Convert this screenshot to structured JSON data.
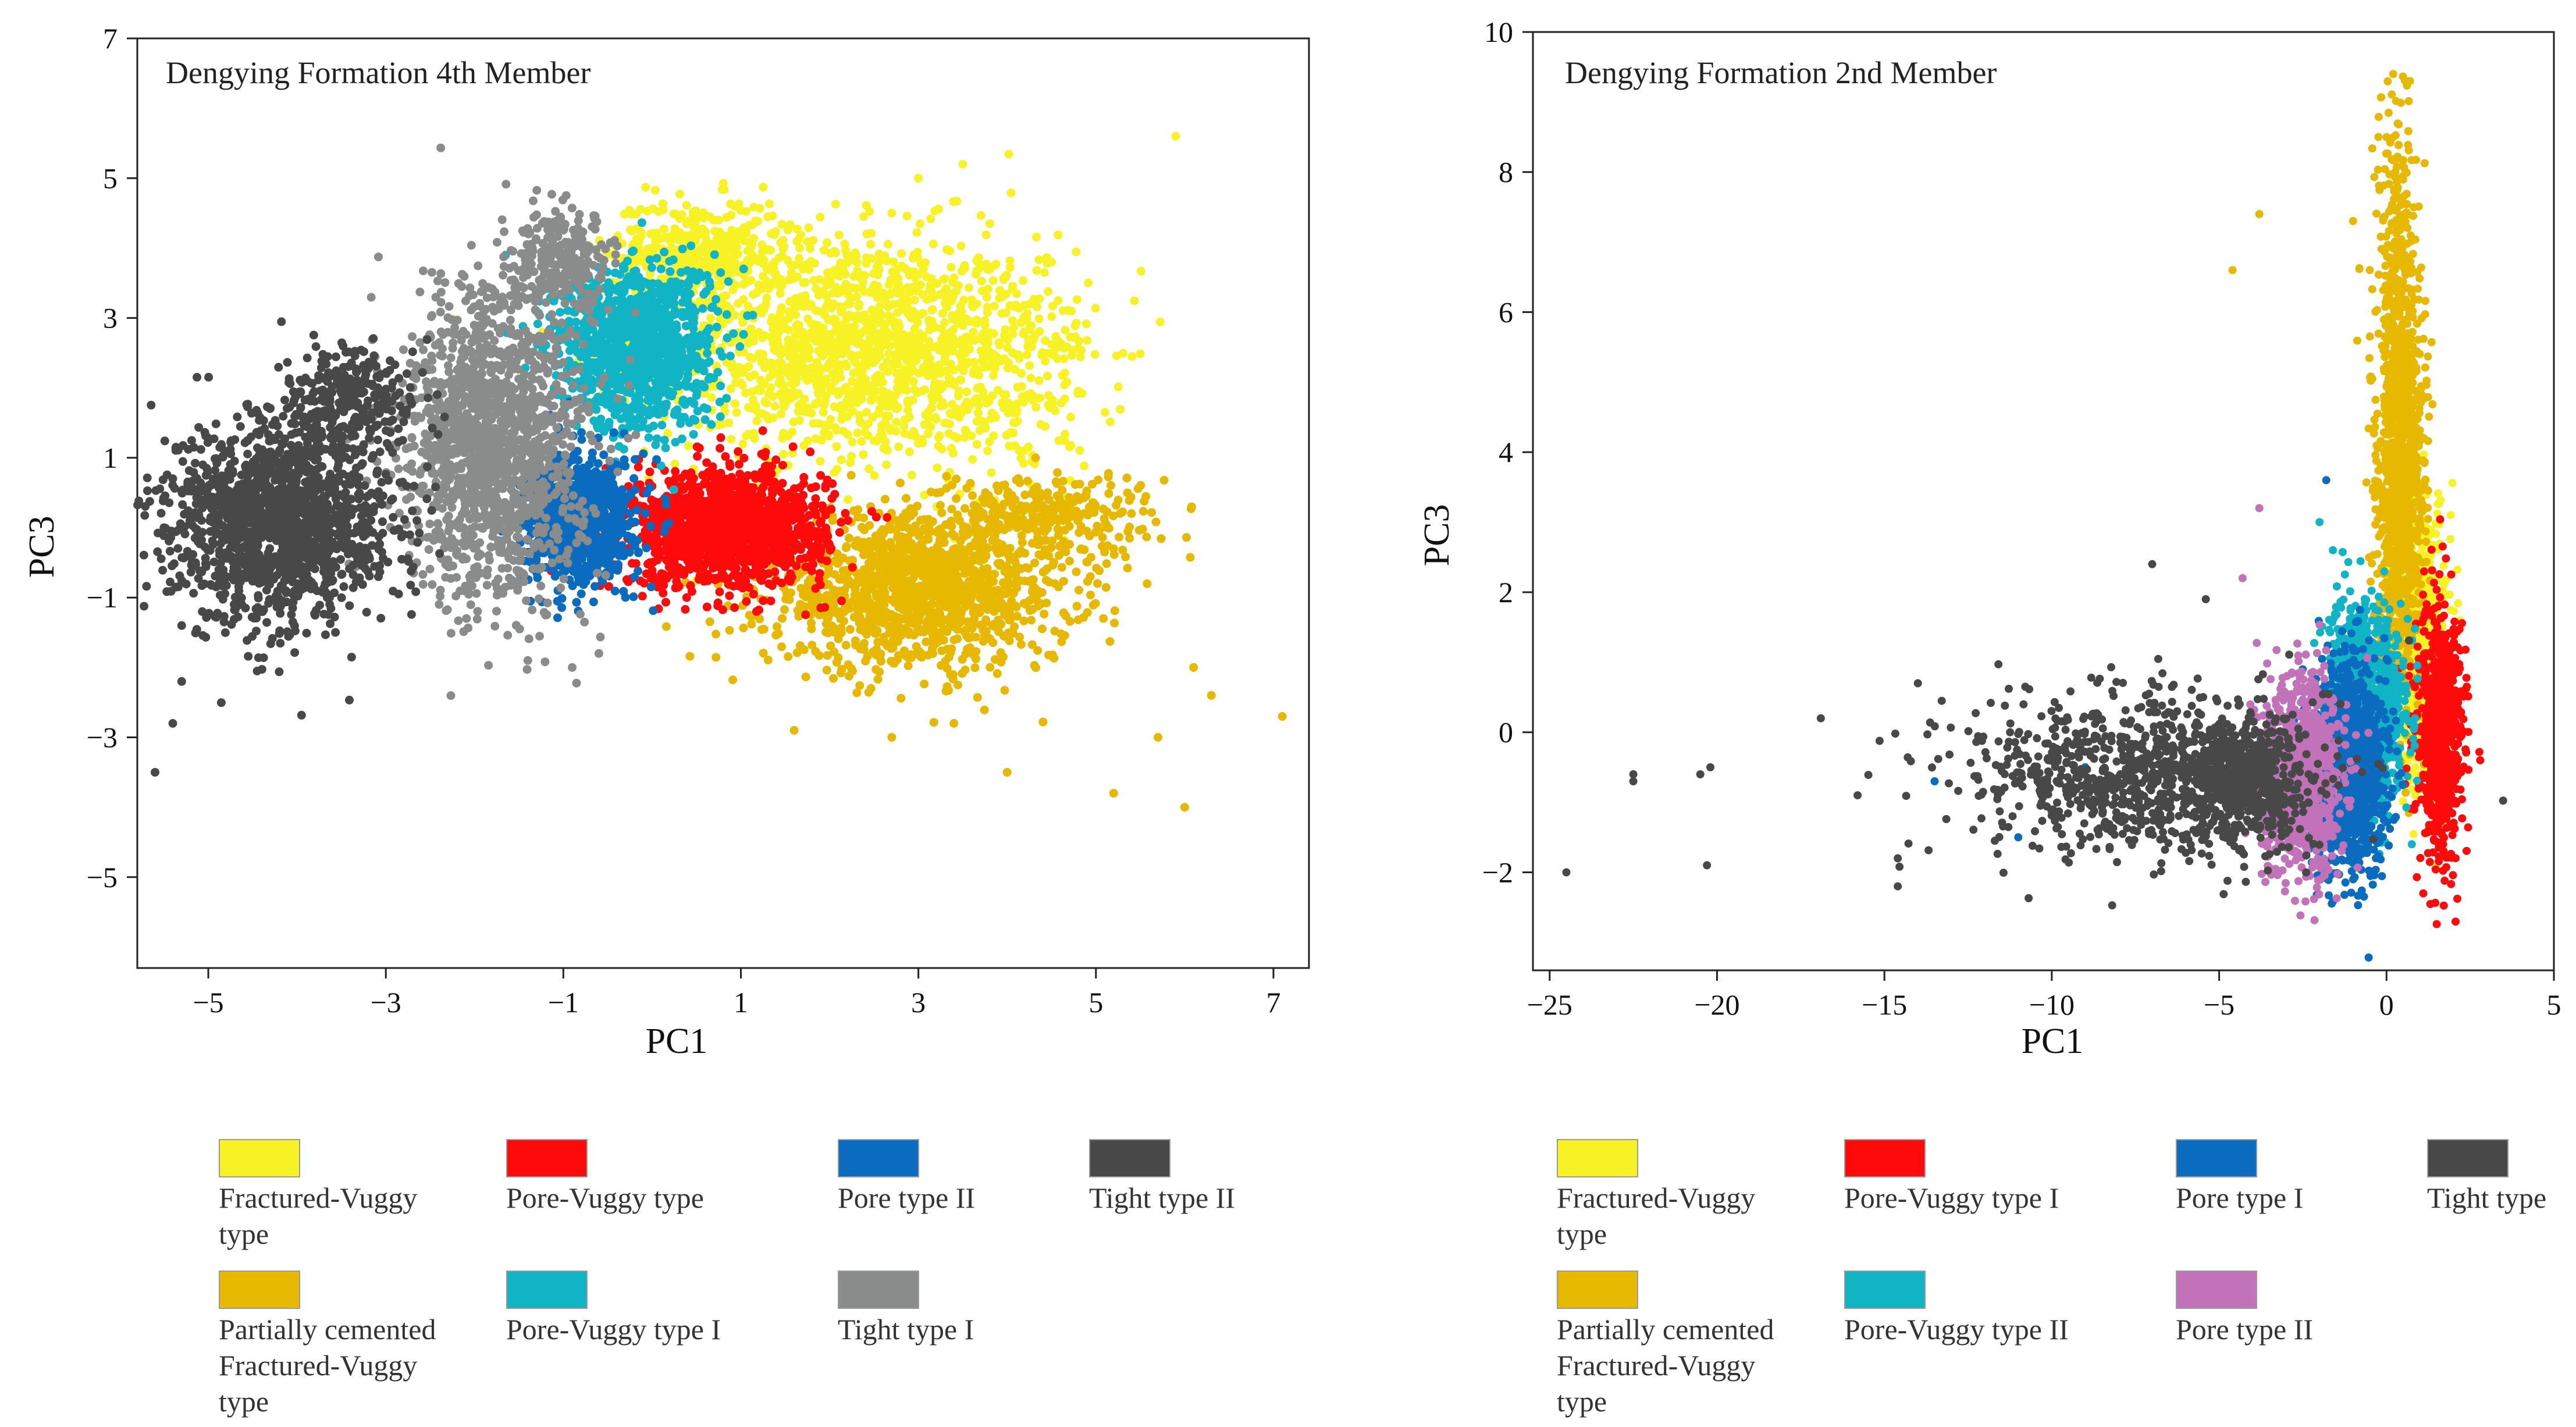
{
  "chart_data": [
    {
      "type": "scatter",
      "title": "Dengying  Formation 4th Member",
      "xlabel": "PC1",
      "ylabel": "PC3",
      "xlim": [
        -5.8,
        7.4
      ],
      "ylim": [
        -6.3,
        7
      ],
      "xticks": [
        -5,
        -3,
        -1,
        1,
        3,
        5,
        7
      ],
      "xtick_labels": [
        "−5",
        "−3",
        "−1",
        "1",
        "3",
        "5",
        "7"
      ],
      "yticks": [
        -5,
        -3,
        -1,
        1,
        3,
        5,
        7
      ],
      "ytick_labels": [
        "−5",
        "−3",
        "−1",
        "1",
        "3",
        "5",
        "7"
      ],
      "series": [
        {
          "name": "Fractured-Vuggy type",
          "color": "#f7f226",
          "clusters": [
            {
              "cx": 2.2,
              "cy": 2.6,
              "sx": 1.1,
              "sy": 0.8,
              "n": 1400
            },
            {
              "cx": 0.5,
              "cy": 4.0,
              "sx": 0.5,
              "sy": 0.35,
              "n": 350
            },
            {
              "cx": 4.0,
              "cy": 2.2,
              "sx": 0.5,
              "sy": 0.9,
              "n": 250
            }
          ],
          "outliers": [
            [
              5.9,
              5.6
            ],
            [
              3.5,
              5.2
            ],
            [
              3.0,
              5.0
            ],
            [
              4.5,
              3.8
            ],
            [
              2.7,
              4.5
            ]
          ]
        },
        {
          "name": "Partially cemented Fractured-Vuggy type",
          "color": "#e6b800",
          "clusters": [
            {
              "cx": 3.0,
              "cy": -0.9,
              "sx": 0.85,
              "sy": 0.55,
              "n": 1300
            },
            {
              "cx": 4.5,
              "cy": 0.2,
              "sx": 0.6,
              "sy": 0.3,
              "n": 250
            }
          ],
          "outliers": [
            [
              7.1,
              -2.7
            ],
            [
              6.3,
              -2.4
            ],
            [
              6.0,
              -4.0
            ],
            [
              5.2,
              -3.8
            ],
            [
              4.0,
              -3.5
            ],
            [
              3.4,
              -2.8
            ],
            [
              2.7,
              -3.0
            ],
            [
              1.6,
              -2.9
            ],
            [
              6.1,
              -2.0
            ],
            [
              5.7,
              -3.0
            ]
          ]
        },
        {
          "name": "Pore-Vuggy type",
          "color": "#ff0a0a",
          "clusters": [
            {
              "cx": 0.85,
              "cy": 0.0,
              "sx": 0.55,
              "sy": 0.42,
              "n": 1300
            }
          ],
          "outliers": []
        },
        {
          "name": "Pore-Vuggy type I",
          "color": "#10b4c4",
          "clusters": [
            {
              "cx": -0.2,
              "cy": 2.6,
              "sx": 0.45,
              "sy": 0.6,
              "n": 1100
            }
          ],
          "outliers": []
        },
        {
          "name": "Pore type II",
          "color": "#0b6bbf",
          "clusters": [
            {
              "cx": -0.8,
              "cy": 0.1,
              "sx": 0.3,
              "sy": 0.45,
              "n": 900
            }
          ],
          "outliers": []
        },
        {
          "name": "Tight type I",
          "color": "#8a8c8c",
          "clusters": [
            {
              "cx": -1.8,
              "cy": 1.2,
              "sx": 0.5,
              "sy": 1.1,
              "n": 1500
            },
            {
              "cx": -1.0,
              "cy": 3.8,
              "sx": 0.3,
              "sy": 0.35,
              "n": 250
            }
          ],
          "outliers": [
            [
              -0.6,
              -1.8
            ],
            [
              -1.4,
              -1.9
            ],
            [
              -0.9,
              -2.0
            ]
          ]
        },
        {
          "name": "Tight type II",
          "color": "#484848",
          "clusters": [
            {
              "cx": -4.2,
              "cy": 0.1,
              "sx": 0.6,
              "sy": 0.7,
              "n": 1500
            },
            {
              "cx": -3.4,
              "cy": 1.8,
              "sx": 0.4,
              "sy": 0.4,
              "n": 300
            }
          ],
          "outliers": [
            [
              -5.6,
              -3.5
            ],
            [
              -5.4,
              -2.8
            ],
            [
              -5.3,
              -2.2
            ],
            [
              -5.3,
              -1.4
            ],
            [
              -5.5,
              0.0
            ],
            [
              -5.4,
              0.7
            ]
          ]
        }
      ]
    },
    {
      "type": "scatter",
      "title": "Dengying  Formation 2nd Member",
      "xlabel": "PC1",
      "ylabel": "PC3",
      "xlim": [
        -25.5,
        5
      ],
      "ylim": [
        -3.4,
        10
      ],
      "xticks": [
        -25,
        -20,
        -15,
        -10,
        -5,
        0,
        5
      ],
      "xtick_labels": [
        "−25",
        "−20",
        "−15",
        "−10",
        "−5",
        "0",
        "5"
      ],
      "yticks": [
        -2,
        0,
        2,
        4,
        6,
        8,
        10
      ],
      "ytick_labels": [
        "−2",
        "0",
        "2",
        "4",
        "6",
        "8",
        "10"
      ],
      "series": [
        {
          "name": "Fractured-Vuggy type",
          "color": "#f7f226",
          "clusters": [
            {
              "cx": 1.0,
              "cy": 1.2,
              "sx": 0.4,
              "sy": 1.0,
              "n": 700
            }
          ],
          "outliers": []
        },
        {
          "name": "Partially cemented Fractured-Vuggy type",
          "color": "#e6b800",
          "clusters": [
            {
              "cx": 0.4,
              "cy": 3.5,
              "sx": 0.35,
              "sy": 1.5,
              "n": 1200
            },
            {
              "cx": 0.3,
              "cy": 7.0,
              "sx": 0.3,
              "sy": 1.1,
              "n": 200
            }
          ],
          "outliers": [
            [
              -4.6,
              6.6
            ],
            [
              -3.8,
              7.4
            ],
            [
              -1.0,
              7.3
            ],
            [
              0.7,
              9.3
            ],
            [
              0.2,
              9.4
            ]
          ]
        },
        {
          "name": "Pore-Vuggy type I",
          "color": "#ff0a0a",
          "clusters": [
            {
              "cx": 1.6,
              "cy": 0.0,
              "sx": 0.35,
              "sy": 0.9,
              "n": 800
            }
          ],
          "outliers": [
            [
              2.8,
              -0.4
            ]
          ]
        },
        {
          "name": "Pore-Vuggy type II",
          "color": "#10b4c4",
          "clusters": [
            {
              "cx": -0.6,
              "cy": 0.3,
              "sx": 0.55,
              "sy": 0.7,
              "n": 1100
            }
          ],
          "outliers": [
            [
              -2.0,
              3.0
            ],
            [
              -1.6,
              2.6
            ]
          ]
        },
        {
          "name": "Pore type I",
          "color": "#0b6bbf",
          "clusters": [
            {
              "cx": -1.1,
              "cy": -0.5,
              "sx": 0.55,
              "sy": 0.75,
              "n": 1100
            }
          ],
          "outliers": [
            [
              -13.5,
              -0.7
            ],
            [
              -9.0,
              -0.5
            ],
            [
              -11.0,
              -1.5
            ],
            [
              -1.8,
              3.6
            ]
          ]
        },
        {
          "name": "Pore type II",
          "color": "#c272b8",
          "clusters": [
            {
              "cx": -2.6,
              "cy": -0.6,
              "sx": 0.6,
              "sy": 0.7,
              "n": 900
            }
          ],
          "outliers": [
            [
              -4.3,
              2.2
            ],
            [
              -3.8,
              3.2
            ]
          ]
        },
        {
          "name": "Tight type",
          "color": "#484848",
          "clusters": [
            {
              "cx": -7.5,
              "cy": -0.6,
              "sx": 2.6,
              "sy": 0.6,
              "n": 900
            },
            {
              "cx": -4.2,
              "cy": -0.7,
              "sx": 0.8,
              "sy": 0.45,
              "n": 500
            }
          ],
          "outliers": [
            [
              -24.5,
              -2.0
            ],
            [
              -22.5,
              -0.7
            ],
            [
              -22.5,
              -0.6
            ],
            [
              -20.2,
              -0.5
            ],
            [
              -20.5,
              -0.6
            ],
            [
              -20.3,
              -1.9
            ],
            [
              -16.9,
              0.2
            ],
            [
              -15.8,
              -0.9
            ],
            [
              -14.6,
              -2.2
            ],
            [
              -14.6,
              -1.8
            ],
            [
              -14.0,
              0.7
            ],
            [
              -7.0,
              2.4
            ],
            [
              -5.4,
              1.9
            ]
          ]
        }
      ]
    }
  ],
  "legends": [
    {
      "items": [
        {
          "label": "Fractured-Vuggy\ntype",
          "color": "#f7f226"
        },
        {
          "label": "Pore-Vuggy type",
          "color": "#ff0a0a"
        },
        {
          "label": "Pore type II",
          "color": "#0b6bbf"
        },
        {
          "label": "Tight type II",
          "color": "#484848"
        },
        {
          "label": "Partially cemented\nFractured-Vuggy\ntype",
          "color": "#e6b800"
        },
        {
          "label": "Pore-Vuggy type I",
          "color": "#10b4c4"
        },
        {
          "label": "Tight type I",
          "color": "#8a8c8c"
        }
      ]
    },
    {
      "items": [
        {
          "label": "Fractured-Vuggy\ntype",
          "color": "#f7f226"
        },
        {
          "label": "Pore-Vuggy type I",
          "color": "#ff0a0a"
        },
        {
          "label": "Pore type I",
          "color": "#0b6bbf"
        },
        {
          "label": "Tight type",
          "color": "#484848"
        },
        {
          "label": "Partially cemented\nFractured-Vuggy\ntype",
          "color": "#e6b800"
        },
        {
          "label": "Pore-Vuggy type II",
          "color": "#10b4c4"
        },
        {
          "label": "Pore type II",
          "color": "#c272b8"
        }
      ]
    }
  ]
}
